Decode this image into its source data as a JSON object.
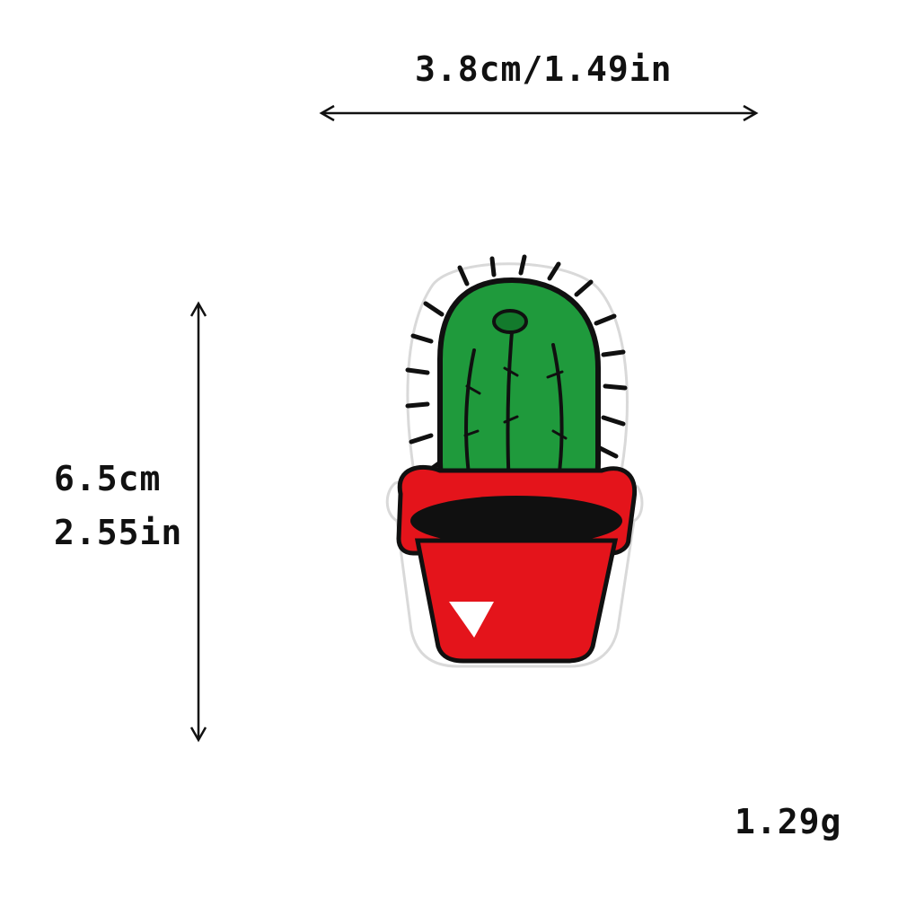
{
  "dimensions": {
    "width_text": "3.8cm/1.49in",
    "height_cm_text": "6.5cm",
    "height_in_text": "2.55in",
    "weight_text": "1.29g"
  },
  "patch": {
    "subject": "embroidered potted cactus patch",
    "colors": {
      "cactus": "#1f9a3c",
      "cactus_dark": "#137a2c",
      "pot": "#e4141b",
      "outline": "#101010",
      "border": "#ffffff"
    }
  }
}
